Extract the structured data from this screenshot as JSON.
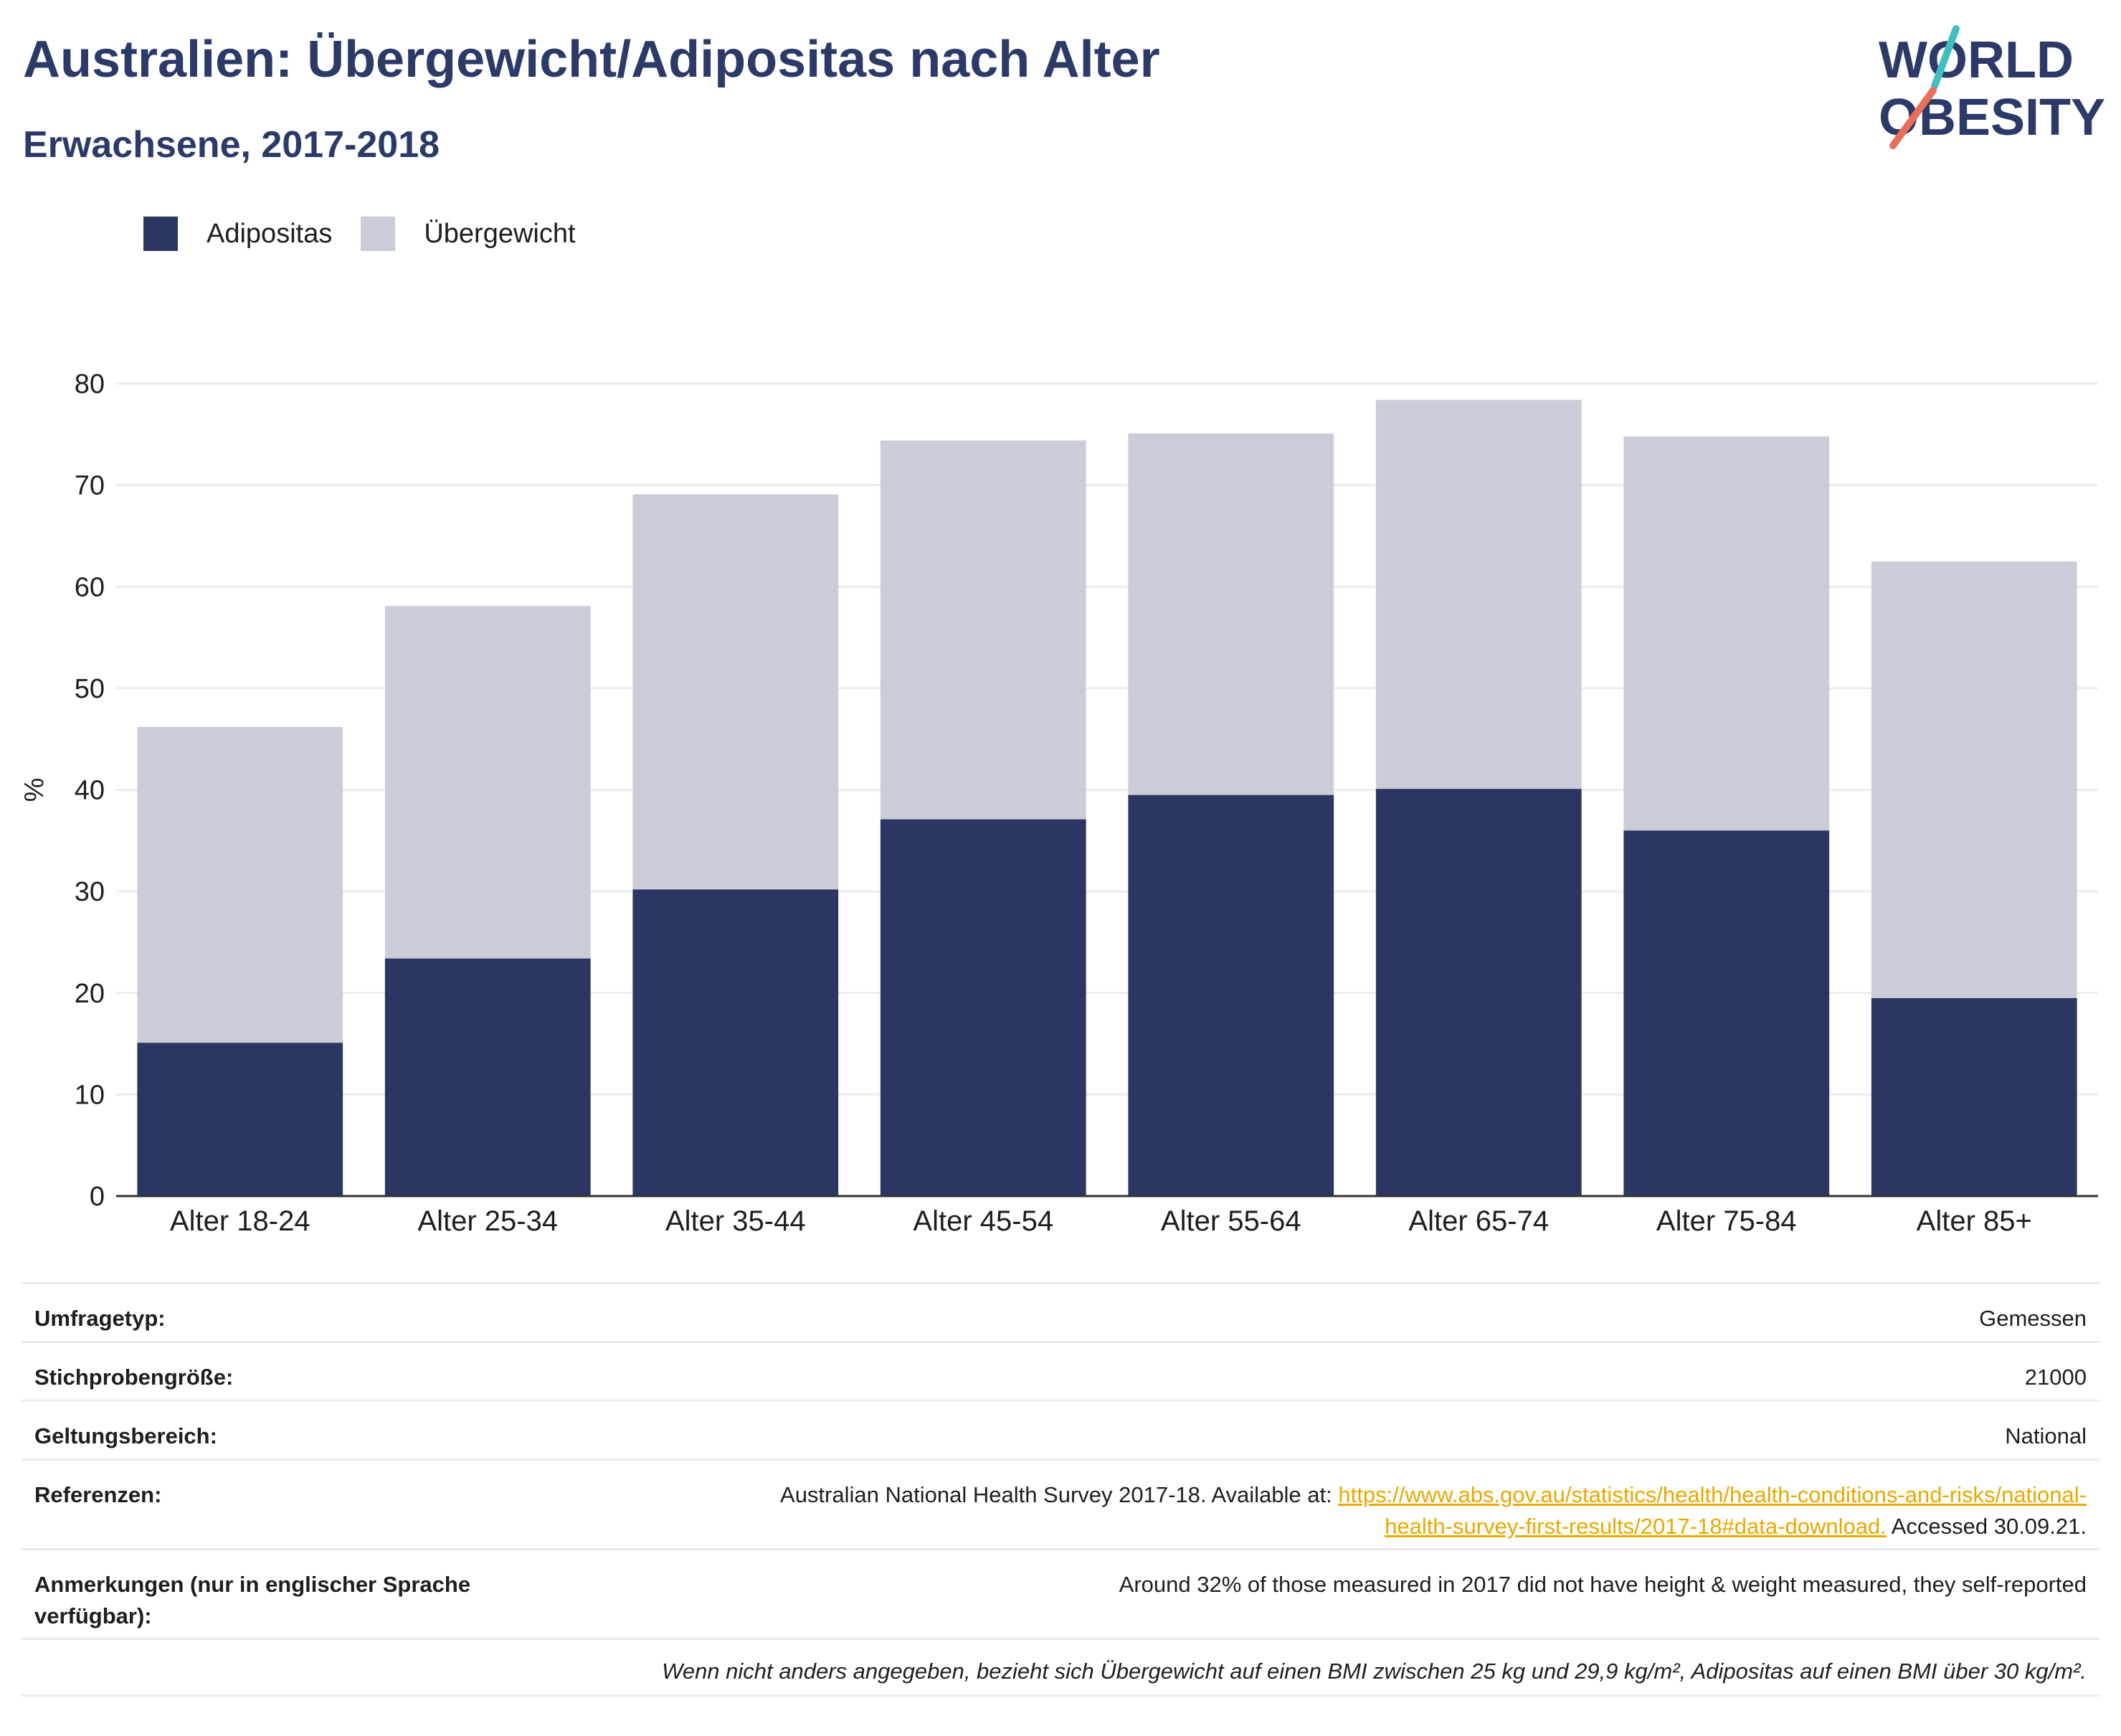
{
  "header": {
    "title": "Australien: Übergewicht/Adipositas nach Alter",
    "subtitle": "Erwachsene, 2017-2018"
  },
  "logo": {
    "line1": "WORLD",
    "line2": "OBESITY",
    "colors": {
      "text": "#2b3a67",
      "slash_top": "#3fbfbf",
      "slash_bottom": "#e8705a"
    }
  },
  "colors": {
    "obesity": "#2b3762",
    "overweight": "#cacdd8",
    "grid": "#ececf0",
    "axis": "#333333",
    "link": "#e8a800"
  },
  "chart_data": {
    "type": "bar",
    "stacked": true,
    "categories": [
      "Alter 18-24",
      "Alter 25-34",
      "Alter 35-44",
      "Alter 45-54",
      "Alter 55-64",
      "Alter 65-74",
      "Alter 75-84",
      "Alter 85+"
    ],
    "series": [
      {
        "name": "Adipositas",
        "values": [
          15.1,
          23.4,
          30.2,
          37.1,
          39.5,
          40.1,
          36.0,
          19.5
        ]
      },
      {
        "name": "Übergewicht",
        "values": [
          31.1,
          34.7,
          38.9,
          37.3,
          35.6,
          38.3,
          38.8,
          43.0
        ]
      }
    ],
    "ylabel": "%",
    "ylim": [
      0,
      80
    ],
    "yticks": [
      0,
      10,
      20,
      30,
      40,
      50,
      60,
      70,
      80
    ],
    "grid": true,
    "legend_position": "top-left"
  },
  "info": {
    "rows": [
      {
        "label": "Umfragetyp:",
        "value": "Gemessen"
      },
      {
        "label": "Stichprobengröße:",
        "value": "21000"
      },
      {
        "label": "Geltungsbereich:",
        "value": "National"
      }
    ],
    "references": {
      "label": "Referenzen:",
      "prefix": "Australian National Health Survey 2017-18. Available at: ",
      "link_line1": "https://www.abs.gov.au/statistics/health/health-conditions-and-risks/national-",
      "link_line2": "health-survey-first-results/2017-18#data-download.",
      "suffix": " Accessed 30.09.21."
    },
    "notes": {
      "label": "Anmerkungen (nur in englischer Sprache verfügbar):",
      "value": "Around 32% of those measured in 2017 did not have height & weight measured, they self-reported"
    },
    "footnote": "Wenn nicht anders angegeben, bezieht sich Übergewicht auf einen BMI zwischen 25 kg und 29,9 kg/m², Adipositas auf einen BMI über 30 kg/m²."
  }
}
